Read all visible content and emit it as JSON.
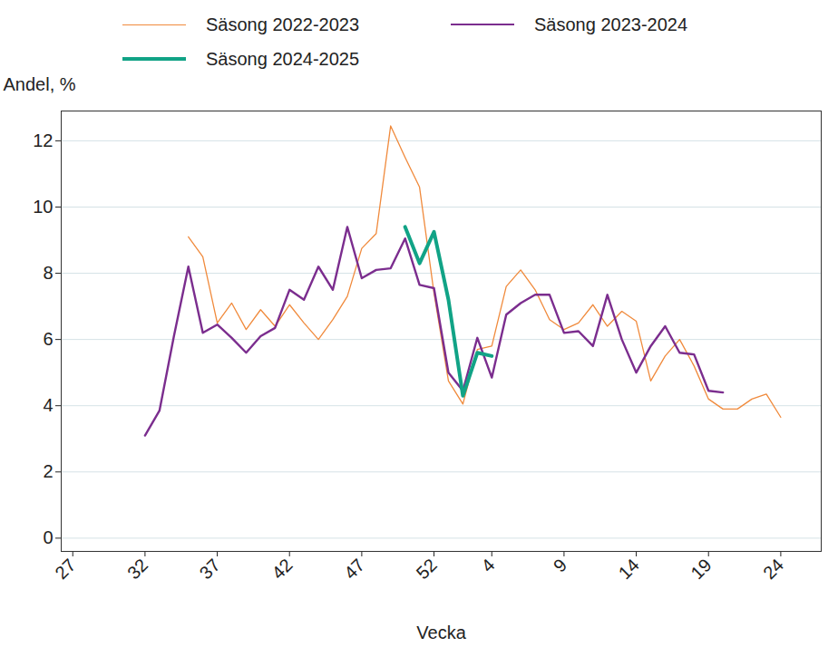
{
  "chart_data": {
    "type": "line",
    "x_label": "Vecka",
    "y_label": "Andel, %",
    "categories": [
      "27",
      null,
      null,
      null,
      null,
      "32",
      null,
      null,
      null,
      null,
      "37",
      null,
      null,
      null,
      null,
      "42",
      null,
      null,
      null,
      null,
      "47",
      null,
      null,
      null,
      null,
      "52",
      null,
      null,
      null,
      "4",
      null,
      null,
      null,
      null,
      "9",
      null,
      null,
      null,
      null,
      "14",
      null,
      null,
      null,
      null,
      "19",
      null,
      null,
      null,
      null,
      "24",
      null,
      null
    ],
    "series": [
      {
        "name": "Säsong 2022-2023",
        "color": "#f08a3c",
        "values": [
          null,
          null,
          null,
          null,
          null,
          null,
          null,
          null,
          9.1,
          8.5,
          6.5,
          7.1,
          6.3,
          6.9,
          6.4,
          7.05,
          6.5,
          6.0,
          6.6,
          7.3,
          8.75,
          9.2,
          12.45,
          11.5,
          10.6,
          7.4,
          4.75,
          4.05,
          5.7,
          5.8,
          7.6,
          8.1,
          7.5,
          6.6,
          6.3,
          6.5,
          7.05,
          6.4,
          6.85,
          6.55,
          4.75,
          5.5,
          6.0,
          5.2,
          4.2,
          3.9,
          3.9,
          4.2,
          4.35,
          3.65,
          null,
          null
        ]
      },
      {
        "name": "Säsong 2023-2024",
        "color": "#7b2d8e",
        "values": [
          null,
          null,
          null,
          null,
          null,
          3.1,
          3.85,
          6.1,
          8.2,
          6.2,
          6.45,
          6.05,
          5.6,
          6.1,
          6.35,
          7.5,
          7.2,
          8.2,
          7.5,
          9.4,
          7.85,
          8.1,
          8.15,
          9.05,
          7.65,
          7.55,
          5.0,
          4.45,
          6.05,
          4.85,
          6.75,
          7.1,
          7.35,
          7.35,
          6.2,
          6.25,
          5.8,
          7.35,
          6.0,
          5.0,
          5.8,
          6.4,
          5.6,
          5.55,
          4.45,
          4.4,
          null,
          null,
          null,
          null,
          null,
          null
        ]
      },
      {
        "name": "Säsong 2024-2025",
        "color": "#11a386",
        "values": [
          null,
          null,
          null,
          null,
          null,
          null,
          null,
          null,
          null,
          null,
          null,
          null,
          null,
          null,
          null,
          null,
          null,
          null,
          null,
          null,
          null,
          null,
          null,
          9.4,
          8.3,
          9.25,
          7.2,
          4.3,
          5.6,
          5.5,
          null,
          null,
          null,
          null,
          null,
          null,
          null,
          null,
          null,
          null,
          null,
          null,
          null,
          null,
          null,
          null,
          null,
          null,
          null,
          null,
          null,
          null
        ]
      }
    ],
    "ylim": [
      -0.4,
      12.9
    ],
    "yticks": [
      0,
      2,
      4,
      6,
      8,
      10,
      12
    ],
    "grid": true,
    "legend": "top"
  }
}
